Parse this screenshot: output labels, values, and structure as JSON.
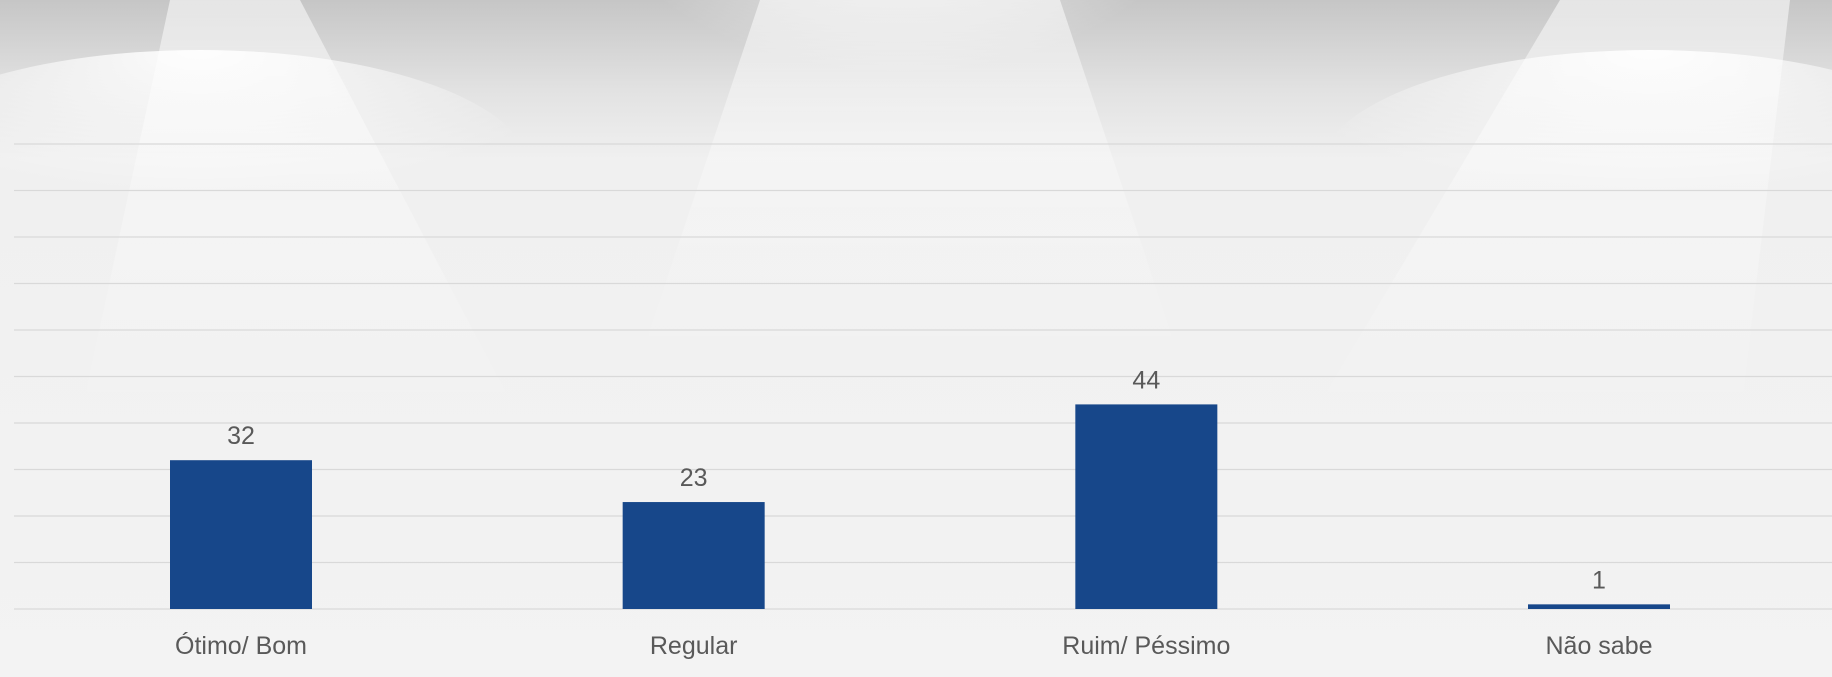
{
  "colors": {
    "bar": "#17478A",
    "gridline": "#d9d9d9",
    "text": "#595959"
  },
  "chart_data": {
    "type": "bar",
    "title": "",
    "xlabel": "",
    "ylabel": "",
    "categories": [
      "Ótimo/ Bom",
      "Regular",
      "Ruim/ Péssimo",
      "Não sabe"
    ],
    "values": [
      32,
      23,
      44,
      1
    ],
    "data_labels": [
      "32",
      "23",
      "44",
      "1"
    ],
    "ylim": [
      0,
      100
    ],
    "grid": true,
    "legend": "none"
  }
}
